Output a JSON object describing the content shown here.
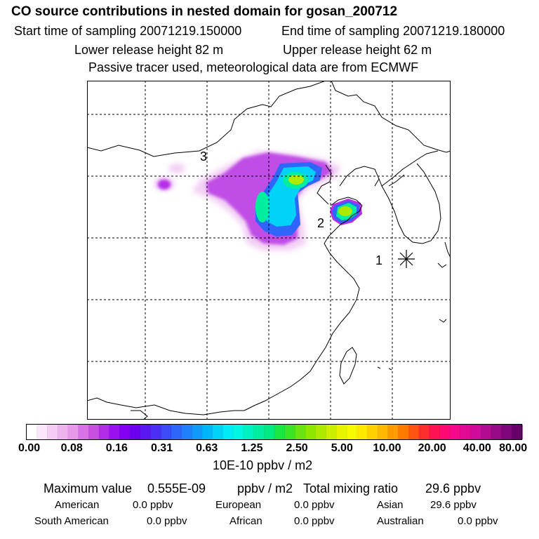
{
  "header": {
    "title": "CO  source contributions in nested domain for gosan_200712",
    "start": "Start time of sampling 20071219.150000",
    "end": "End time of sampling 20071219.180000",
    "lower": "Lower release height   82 m",
    "upper": "Upper release height   62 m",
    "note": "Passive tracer used, meteorological data are from ECMWF"
  },
  "map": {
    "labels": [
      "1",
      "2",
      "3"
    ],
    "receptor_marker": "asterisk",
    "grid": "dashed"
  },
  "colorbar": {
    "ticks": [
      "0.00",
      "0.08",
      "0.16",
      "0.31",
      "0.63",
      "1.25",
      "2.50",
      "5.00",
      "10.00",
      "20.00",
      "40.00",
      "80.00"
    ],
    "unit": "10E-10 ppbv / m2",
    "colors": [
      "#ffffff",
      "#fbe6fb",
      "#f4ccf4",
      "#ecb3ef",
      "#e59ae9",
      "#d973e5",
      "#c94ee2",
      "#b22be7",
      "#9a10ee",
      "#8400f4",
      "#6a00ee",
      "#5a17f0",
      "#4b30f4",
      "#3d4af7",
      "#2f66f9",
      "#1e80fb",
      "#109af9",
      "#00b6f8",
      "#00d2f8",
      "#00ebf5",
      "#00f7e0",
      "#00f2c0",
      "#00eea0",
      "#00e982",
      "#19e640",
      "#3ae323",
      "#6ae30f",
      "#8fe600",
      "#aeea00",
      "#ccef00",
      "#e6f400",
      "#f8f900",
      "#ffe900",
      "#ffd000",
      "#ffb700",
      "#ff9a00",
      "#ff7a00",
      "#ff5510",
      "#ff2e2e",
      "#ff1252",
      "#ff0a74",
      "#f5088a",
      "#e00a95",
      "#cc0c98",
      "#b30c92",
      "#990a88",
      "#80067c",
      "#660066"
    ]
  },
  "summary": {
    "max_label": "Maximum value",
    "max_value": "0.555E-09",
    "max_unit": "ppbv / m2",
    "total_label": "Total mixing ratio",
    "total_value": "29.6 ppbv",
    "regions": [
      {
        "name": "American",
        "value": "0.0 ppbv"
      },
      {
        "name": "European",
        "value": "0.0 ppbv"
      },
      {
        "name": "Asian",
        "value": "29.6 ppbv"
      },
      {
        "name": "South American",
        "value": "0.0 ppbv"
      },
      {
        "name": "African",
        "value": "0.0 ppbv"
      },
      {
        "name": "Australian",
        "value": "0.0 ppbv"
      }
    ]
  }
}
